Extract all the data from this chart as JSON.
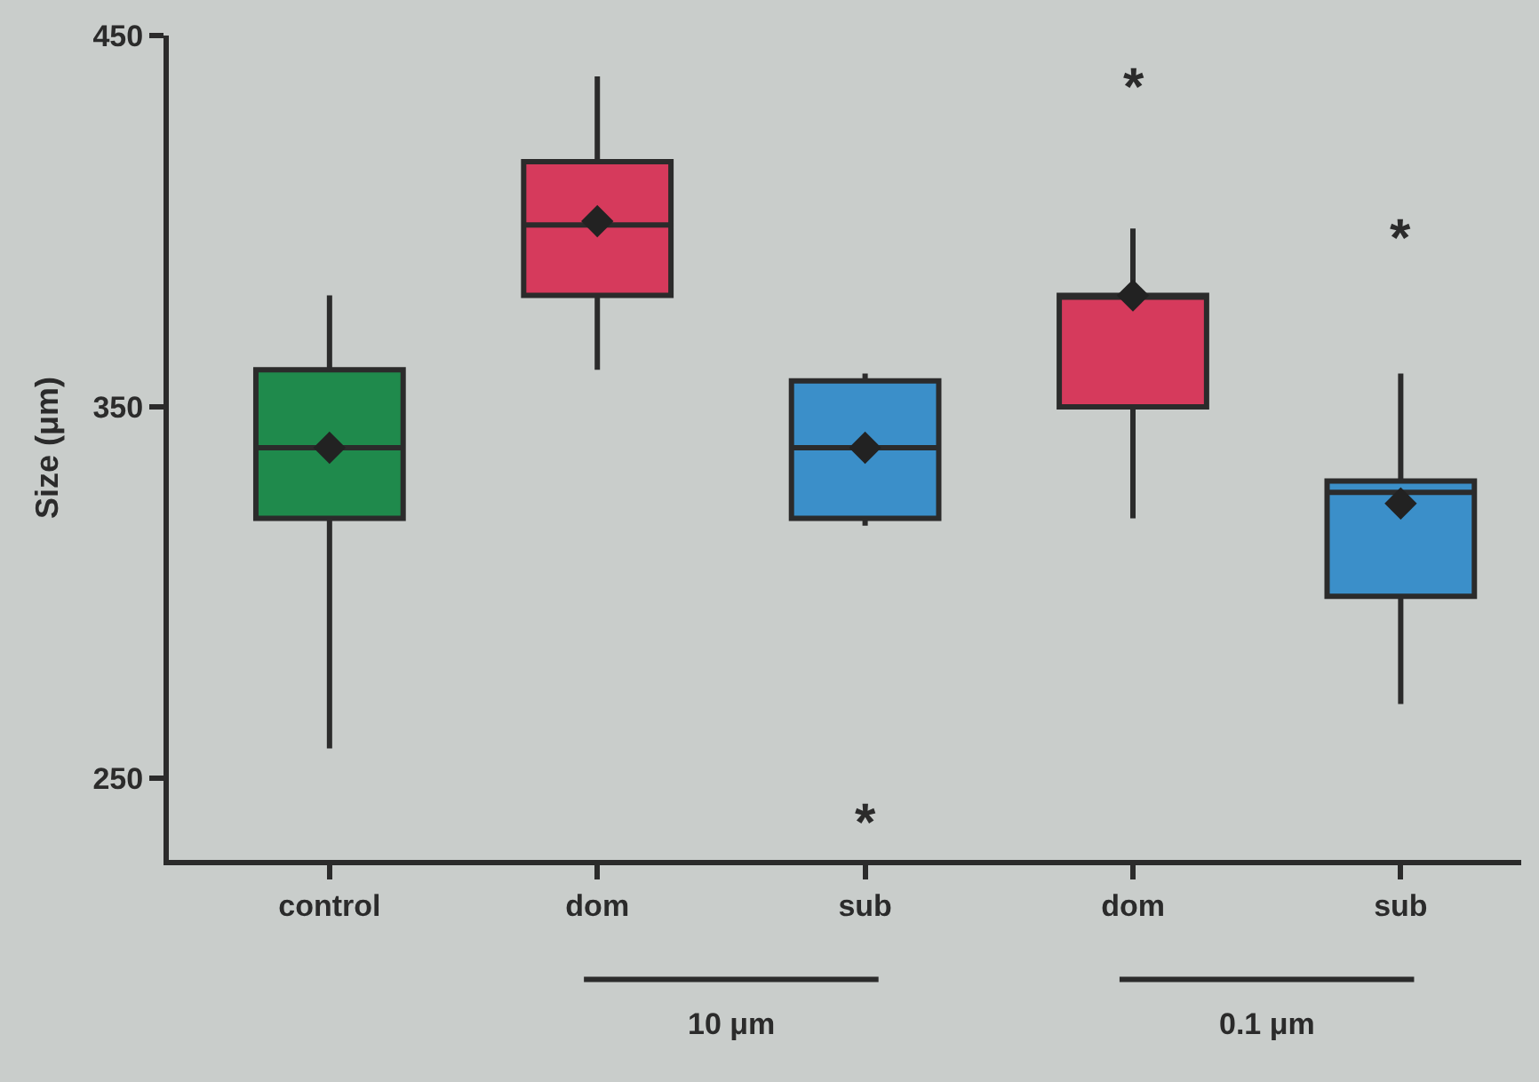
{
  "chart_data": {
    "type": "box",
    "ylabel": "Size (μm)",
    "categories": [
      "control",
      "dom",
      "sub",
      "dom",
      "sub"
    ],
    "colors": [
      "#1f8a4c",
      "#d63a5c",
      "#3b8fc9",
      "#d63a5c",
      "#3b8fc9"
    ],
    "boxes": [
      {
        "low": 258,
        "q1": 320,
        "median": 339,
        "q3": 360,
        "high": 380,
        "mean": 339
      },
      {
        "low": 360,
        "q1": 380,
        "median": 399,
        "q3": 416,
        "high": 439,
        "mean": 400
      },
      {
        "low": 318,
        "q1": 320,
        "median": 339,
        "q3": 357,
        "high": 359,
        "mean": 339
      },
      {
        "low": 320,
        "q1": 350,
        "median": 380,
        "q3": 380,
        "high": 398,
        "mean": 380
      },
      {
        "low": 270,
        "q1": 299,
        "median": 327,
        "q3": 330,
        "high": 359,
        "mean": 324
      }
    ],
    "ylim": [
      228,
      450
    ],
    "yticks": [
      250,
      350,
      450
    ],
    "grid": false,
    "annotations": [
      "*",
      "*",
      "*",
      "10 μm",
      "0.1 μm"
    ]
  }
}
